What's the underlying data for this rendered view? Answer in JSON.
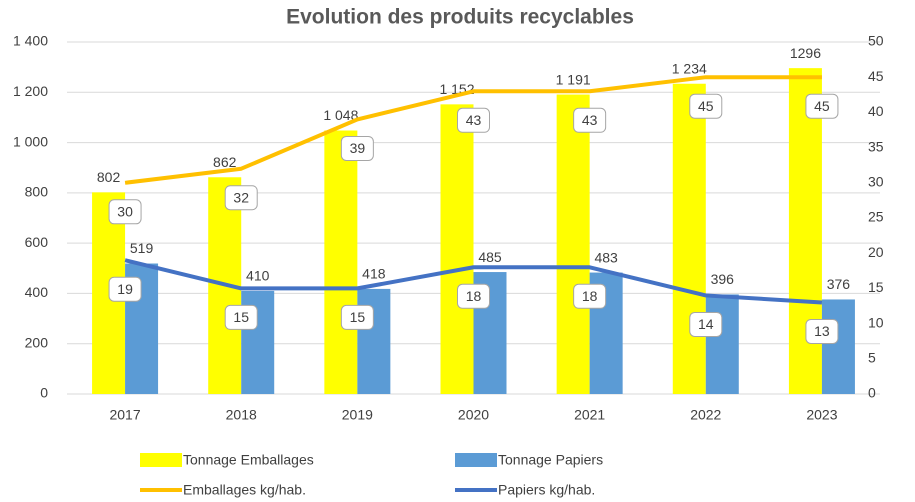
{
  "chart_data": {
    "type": "bar-line",
    "title": "Evolution des produits recyclables",
    "categories": [
      "2017",
      "2018",
      "2019",
      "2020",
      "2021",
      "2022",
      "2023"
    ],
    "series": [
      {
        "name": "Tonnage Emballages",
        "type": "bar",
        "color": "#ffff00",
        "values": [
          802,
          862,
          1048,
          1152,
          1191,
          1234,
          1296
        ],
        "value_labels": [
          "802",
          "862",
          "1 048",
          "1 152",
          "1 191",
          "1 234",
          "1296"
        ]
      },
      {
        "name": "Tonnage Papiers",
        "type": "bar",
        "color": "#5b9bd5",
        "values": [
          519,
          410,
          418,
          485,
          483,
          396,
          376
        ]
      },
      {
        "name": "Emballages kg/hab.",
        "type": "line",
        "axis": "y2",
        "color": "#ffc000",
        "values": [
          30,
          32,
          39,
          43,
          43,
          45,
          45
        ]
      },
      {
        "name": "Papiers kg/hab.",
        "type": "line",
        "axis": "y2",
        "color": "#4472c4",
        "values": [
          19,
          15,
          15,
          18,
          18,
          14,
          13
        ]
      }
    ],
    "ylim": [
      0,
      1400
    ],
    "yticks": [
      0,
      200,
      400,
      600,
      800,
      {
        "value": 1000,
        "label": "1 000"
      },
      {
        "value": 1200,
        "label": "1 200"
      },
      {
        "value": 1400,
        "label": "1 400"
      }
    ],
    "y2lim": [
      0,
      50
    ],
    "y2ticks": [
      0,
      5,
      10,
      15,
      20,
      25,
      30,
      35,
      40,
      45,
      50
    ],
    "grid": true,
    "legend": "bottom"
  }
}
